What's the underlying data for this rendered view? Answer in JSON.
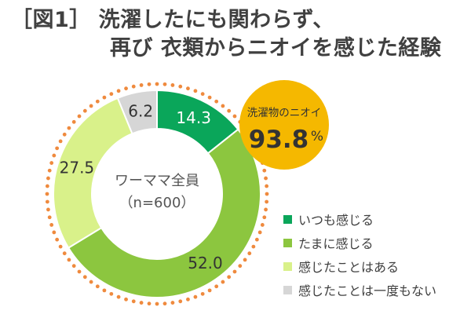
{
  "title": {
    "line1": "［図1］ 洗濯したにも関わらず、",
    "line2": "再び 衣類からニオイを感じた経験"
  },
  "chart_data": {
    "type": "pie",
    "variant": "donut",
    "center_label": "ワーママ全員",
    "center_sublabel": "（n=600）",
    "categories": [
      "いつも感じる",
      "たまに感じる",
      "感じたことはある",
      "感じたことは一度もない"
    ],
    "values": [
      14.3,
      52.0,
      27.5,
      6.2
    ],
    "value_labels": [
      "14.3",
      "52.0",
      "27.5",
      "6.2"
    ],
    "colors": [
      "#0aa65a",
      "#8cc63f",
      "#d9f18a",
      "#d6d6d6"
    ],
    "label_colors": [
      "#ffffff",
      "#333333",
      "#333333",
      "#333333"
    ],
    "legend_position": "bottom-right",
    "callout": {
      "label": "洗濯物のニオイ",
      "value": "93.8",
      "unit": "%",
      "color": "#f5b800"
    },
    "ring_decoration_color": "#ef8a3e"
  }
}
